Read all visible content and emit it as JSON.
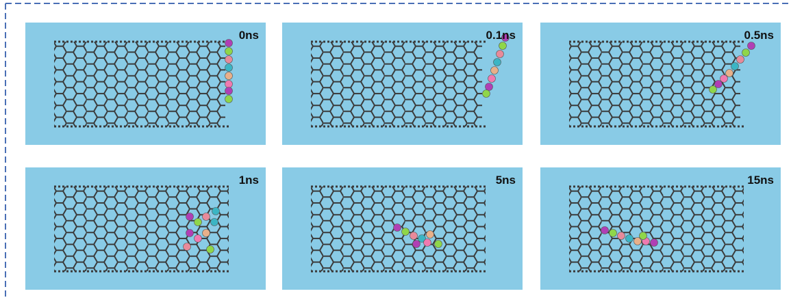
{
  "panels": [
    {
      "label": "0ns"
    },
    {
      "label": "0.1ns"
    },
    {
      "label": "0.5ns"
    },
    {
      "label": "1ns"
    },
    {
      "label": "5ns"
    },
    {
      "label": "15ns"
    }
  ]
}
